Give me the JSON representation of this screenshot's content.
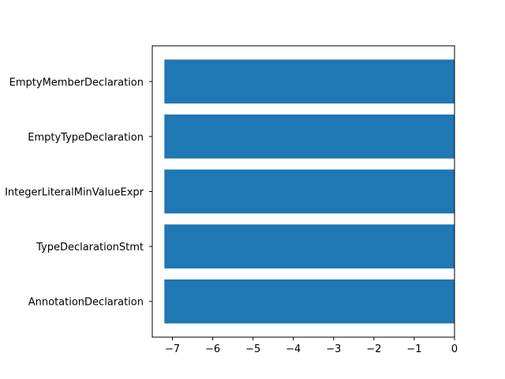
{
  "chart_data": {
    "type": "bar",
    "orientation": "horizontal",
    "categories": [
      "AnnotationDeclaration",
      "TypeDeclarationStmt",
      "IntegerLiteralMinValueExpr",
      "EmptyTypeDeclaration",
      "EmptyMemberDeclaration"
    ],
    "values": [
      -7.2,
      -7.2,
      -7.2,
      -7.2,
      -7.2
    ],
    "xlim": [
      -7.5,
      0
    ],
    "xticks": [
      -7,
      -6,
      -5,
      -4,
      -3,
      -2,
      -1,
      0
    ],
    "xtick_labels": [
      "−7",
      "−6",
      "−5",
      "−4",
      "−3",
      "−2",
      "−1",
      "0"
    ],
    "title": "",
    "xlabel": "",
    "ylabel": "",
    "grid": false,
    "bar_color": "#1f77b4"
  }
}
